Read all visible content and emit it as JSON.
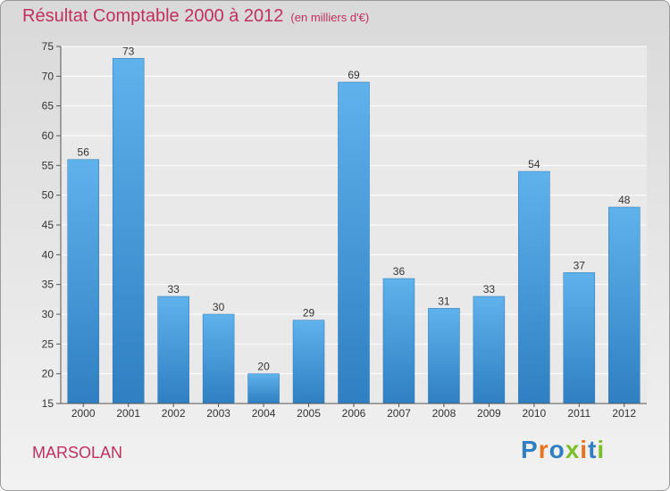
{
  "header": {
    "title": "Résultat Comptable 2000 à 2012",
    "subtitle": "(en milliers d'€)"
  },
  "footer": {
    "commune": "MARSOLAN",
    "logo": "Proxiti"
  },
  "colors": {
    "title": "#c0305e",
    "bar_light": "#5fb2ec",
    "bar_dark": "#2f7fc2"
  },
  "chart_data": {
    "type": "bar",
    "title": "Résultat Comptable 2000 à 2012",
    "ylabel": "(en milliers d'€)",
    "xlabel": "",
    "categories": [
      "2000",
      "2001",
      "2002",
      "2003",
      "2004",
      "2005",
      "2006",
      "2007",
      "2008",
      "2009",
      "2010",
      "2011",
      "2012"
    ],
    "values": [
      56,
      73,
      33,
      30,
      20,
      29,
      69,
      36,
      31,
      33,
      54,
      37,
      48
    ],
    "ylim": [
      15,
      75
    ],
    "yticks": [
      15,
      20,
      25,
      30,
      35,
      40,
      45,
      50,
      55,
      60,
      65,
      70,
      75
    ],
    "grid": true
  }
}
